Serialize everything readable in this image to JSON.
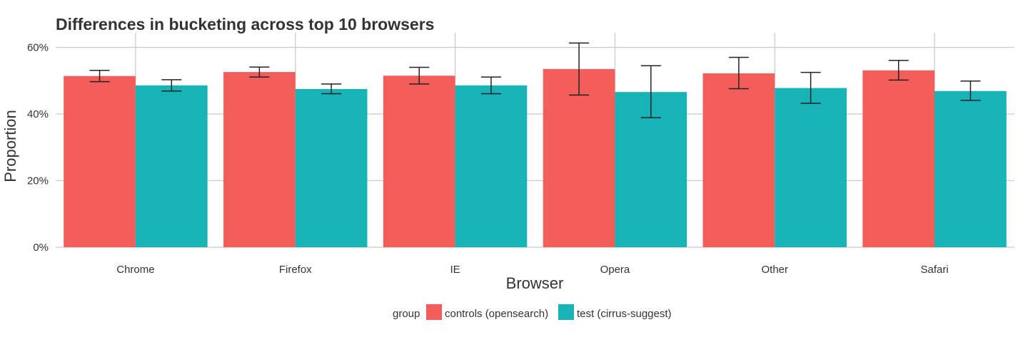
{
  "chart_data": {
    "type": "bar",
    "title": "Differences in bucketing across top 10 browsers",
    "xlabel": "Browser",
    "ylabel": "Proportion",
    "categories": [
      "Chrome",
      "Firefox",
      "IE",
      "Opera",
      "Other",
      "Safari"
    ],
    "ylim": [
      0,
      0.64
    ],
    "yticks": [
      0,
      0.2,
      0.4,
      0.6
    ],
    "ytick_labels": [
      "0%",
      "20%",
      "40%",
      "60%"
    ],
    "series": [
      {
        "name": "controls (opensearch)",
        "color": "#F35E5A",
        "values": [
          0.514,
          0.526,
          0.515,
          0.535,
          0.522,
          0.531
        ],
        "lower": [
          0.497,
          0.511,
          0.49,
          0.457,
          0.476,
          0.502
        ],
        "upper": [
          0.531,
          0.541,
          0.54,
          0.613,
          0.57,
          0.561
        ]
      },
      {
        "name": "test (cirrus-suggest)",
        "color": "#17B3B7",
        "values": [
          0.486,
          0.475,
          0.486,
          0.466,
          0.478,
          0.469
        ],
        "lower": [
          0.469,
          0.461,
          0.461,
          0.389,
          0.432,
          0.441
        ],
        "upper": [
          0.503,
          0.49,
          0.511,
          0.545,
          0.525,
          0.499
        ]
      }
    ],
    "grid": true,
    "legend": {
      "title": "group",
      "position": "bottom"
    }
  }
}
